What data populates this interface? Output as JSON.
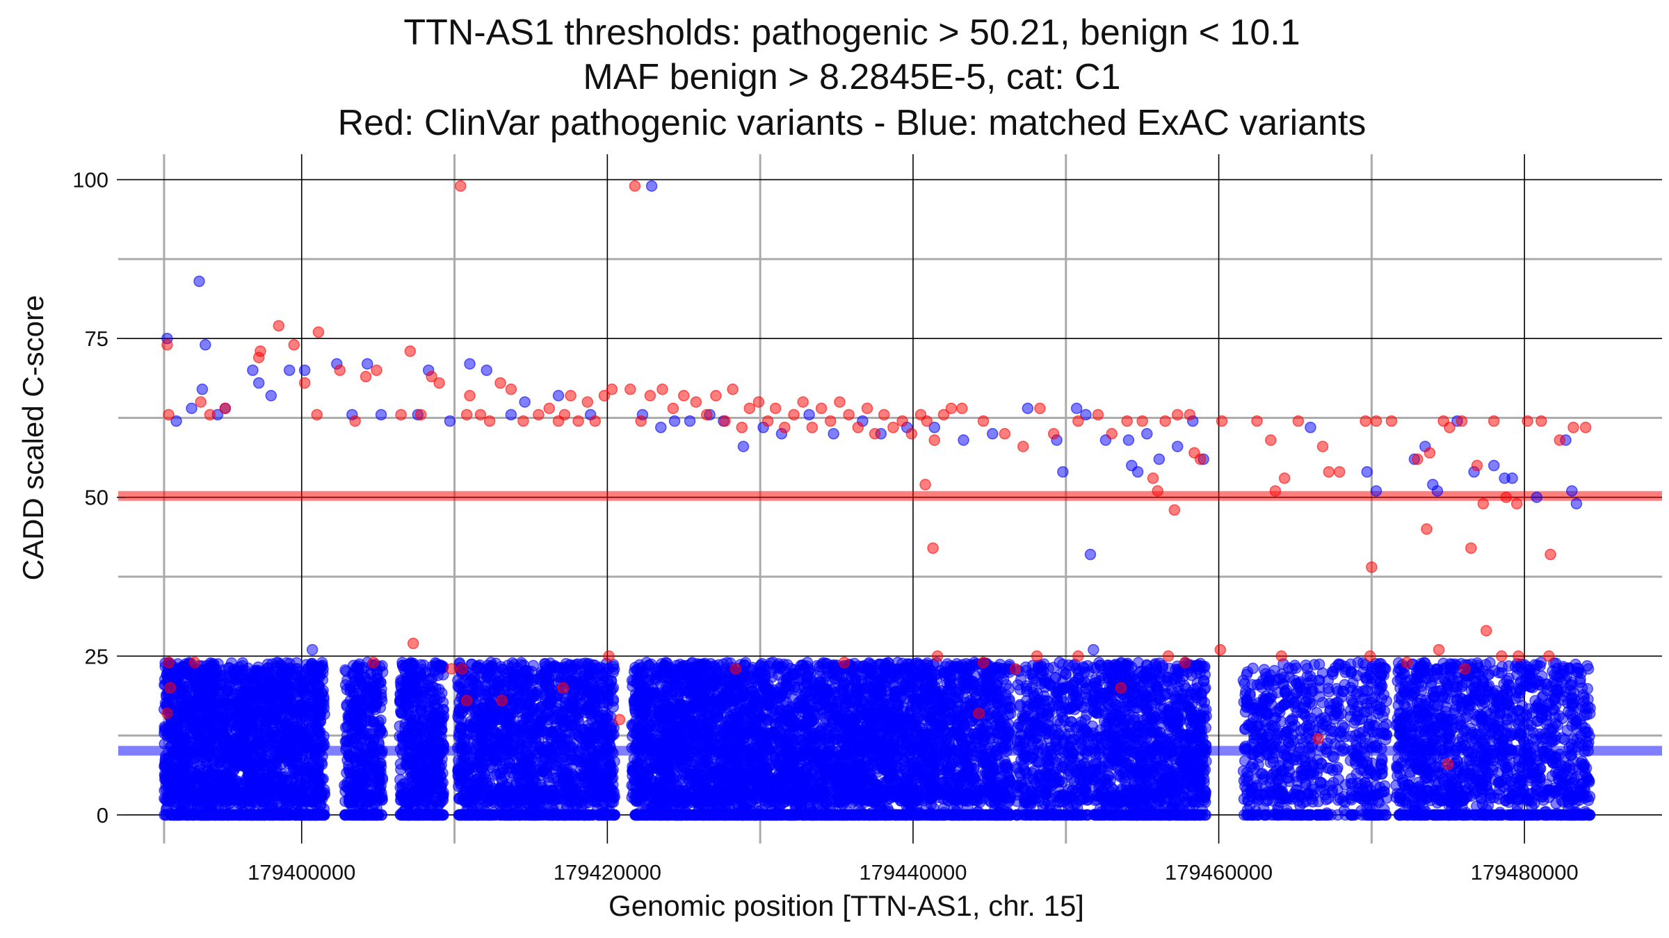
{
  "chart_data": {
    "type": "scatter",
    "title_lines": [
      "TTN-AS1 thresholds: pathogenic > 50.21, benign < 10.1",
      "MAF benign > 8.2845E-5, cat: C1",
      "Red: ClinVar pathogenic variants - Blue: matched ExAC variants"
    ],
    "xlabel": "Genomic position [TTN-AS1, chr. 15]",
    "ylabel": "CADD scaled C-score",
    "xlim": [
      179388000,
      179489000
    ],
    "ylim": [
      -4.5,
      104
    ],
    "x_ticks": [
      179400000,
      179420000,
      179440000,
      179460000,
      179480000
    ],
    "x_tick_labels": [
      "179400000",
      "179420000",
      "179440000",
      "179460000",
      "179480000"
    ],
    "y_ticks": [
      0,
      25,
      50,
      75,
      100
    ],
    "y_tick_labels": [
      "0",
      "25",
      "50",
      "75",
      "100"
    ],
    "major_vgrid_color": "#000000",
    "minor_vgrid_color": "#aaaaaa",
    "extra_hlines": [
      {
        "y": 62.5,
        "color": "#aaaaaa"
      },
      {
        "y": 87.5,
        "color": "#aaaaaa"
      },
      {
        "y": 37.5,
        "color": "#aaaaaa"
      },
      {
        "y": 12.5,
        "color": "#aaaaaa"
      }
    ],
    "minor_vgrid": [
      179391000,
      179410000,
      179430000,
      179450000,
      179470000
    ],
    "thresholds": [
      {
        "name": "pathogenic",
        "y": 50.21,
        "color": "#ff0000"
      },
      {
        "name": "benign",
        "y": 10.1,
        "color": "#0000ff"
      }
    ],
    "series": [
      {
        "name": "ClinVar pathogenic",
        "color": "#ff0000",
        "points": [
          [
            179410400,
            99
          ],
          [
            179421800,
            99
          ],
          [
            179391200,
            74
          ],
          [
            179391300,
            63
          ],
          [
            179393400,
            65
          ],
          [
            179394000,
            63
          ],
          [
            179395000,
            64
          ],
          [
            179397200,
            72
          ],
          [
            179397300,
            73
          ],
          [
            179398500,
            77
          ],
          [
            179399500,
            74
          ],
          [
            179400200,
            68
          ],
          [
            179401100,
            76
          ],
          [
            179401000,
            63
          ],
          [
            179402500,
            70
          ],
          [
            179403500,
            62
          ],
          [
            179404200,
            69
          ],
          [
            179404900,
            70
          ],
          [
            179406500,
            63
          ],
          [
            179407100,
            73
          ],
          [
            179407800,
            63
          ],
          [
            179408500,
            69
          ],
          [
            179409000,
            68
          ],
          [
            179410800,
            63
          ],
          [
            179411000,
            66
          ],
          [
            179411700,
            63
          ],
          [
            179412300,
            62
          ],
          [
            179413000,
            68
          ],
          [
            179413700,
            67
          ],
          [
            179414500,
            62
          ],
          [
            179415500,
            63
          ],
          [
            179416200,
            64
          ],
          [
            179416800,
            62
          ],
          [
            179417200,
            63
          ],
          [
            179417600,
            66
          ],
          [
            179418100,
            62
          ],
          [
            179418700,
            65
          ],
          [
            179419200,
            62
          ],
          [
            179419800,
            66
          ],
          [
            179420300,
            67
          ],
          [
            179421500,
            67
          ],
          [
            179422200,
            62
          ],
          [
            179422800,
            66
          ],
          [
            179423600,
            67
          ],
          [
            179424300,
            64
          ],
          [
            179425000,
            66
          ],
          [
            179425800,
            65
          ],
          [
            179426500,
            63
          ],
          [
            179427100,
            66
          ],
          [
            179427700,
            62
          ],
          [
            179428200,
            67
          ],
          [
            179428800,
            61
          ],
          [
            179429300,
            64
          ],
          [
            179429900,
            65
          ],
          [
            179430500,
            62
          ],
          [
            179431000,
            64
          ],
          [
            179431600,
            61
          ],
          [
            179432200,
            63
          ],
          [
            179432800,
            65
          ],
          [
            179433400,
            61
          ],
          [
            179434000,
            64
          ],
          [
            179434600,
            62
          ],
          [
            179435200,
            65
          ],
          [
            179435800,
            63
          ],
          [
            179436400,
            61
          ],
          [
            179437000,
            64
          ],
          [
            179437500,
            60
          ],
          [
            179438100,
            63
          ],
          [
            179438700,
            61
          ],
          [
            179439300,
            62
          ],
          [
            179439900,
            60
          ],
          [
            179440500,
            63
          ],
          [
            179440900,
            62
          ],
          [
            179441400,
            59
          ],
          [
            179442000,
            63
          ],
          [
            179442500,
            64
          ],
          [
            179440800,
            52
          ],
          [
            179441300,
            42
          ],
          [
            179443200,
            64
          ],
          [
            179444600,
            62
          ],
          [
            179446000,
            60
          ],
          [
            179447200,
            58
          ],
          [
            179448300,
            64
          ],
          [
            179449200,
            60
          ],
          [
            179450800,
            62
          ],
          [
            179452100,
            63
          ],
          [
            179453000,
            60
          ],
          [
            179454000,
            62
          ],
          [
            179455000,
            62
          ],
          [
            179455700,
            53
          ],
          [
            179456000,
            51
          ],
          [
            179456500,
            62
          ],
          [
            179457100,
            48
          ],
          [
            179457300,
            63
          ],
          [
            179458100,
            63
          ],
          [
            179458400,
            57
          ],
          [
            179458800,
            56
          ],
          [
            179460200,
            62
          ],
          [
            179462500,
            62
          ],
          [
            179463400,
            59
          ],
          [
            179463700,
            51
          ],
          [
            179464300,
            53
          ],
          [
            179465200,
            62
          ],
          [
            179466800,
            58
          ],
          [
            179467200,
            54
          ],
          [
            179467900,
            54
          ],
          [
            179469600,
            62
          ],
          [
            179470300,
            62
          ],
          [
            179470000,
            39
          ],
          [
            179471300,
            62
          ],
          [
            179473000,
            56
          ],
          [
            179473800,
            57
          ],
          [
            179473600,
            45
          ],
          [
            179474700,
            62
          ],
          [
            179475100,
            61
          ],
          [
            179475900,
            62
          ],
          [
            179476900,
            55
          ],
          [
            179476500,
            42
          ],
          [
            179477300,
            49
          ],
          [
            179478000,
            62
          ],
          [
            179478800,
            50
          ],
          [
            179479500,
            49
          ],
          [
            179480200,
            62
          ],
          [
            179481100,
            62
          ],
          [
            179481700,
            41
          ],
          [
            179482300,
            59
          ],
          [
            179483200,
            61
          ],
          [
            179484000,
            61
          ],
          [
            179391300,
            24
          ],
          [
            179391400,
            20
          ],
          [
            179391200,
            16
          ],
          [
            179393000,
            24
          ],
          [
            179404700,
            24
          ],
          [
            179407300,
            27
          ],
          [
            179409800,
            23
          ],
          [
            179410500,
            23
          ],
          [
            179410800,
            18
          ],
          [
            179413100,
            18
          ],
          [
            179417100,
            20
          ],
          [
            179420100,
            25
          ],
          [
            179420800,
            15
          ],
          [
            179428400,
            23
          ],
          [
            179435500,
            24
          ],
          [
            179441600,
            25
          ],
          [
            179444300,
            16
          ],
          [
            179444600,
            24
          ],
          [
            179446700,
            23
          ],
          [
            179448100,
            25
          ],
          [
            179450800,
            25
          ],
          [
            179453600,
            20
          ],
          [
            179456700,
            25
          ],
          [
            179457800,
            24
          ],
          [
            179460100,
            26
          ],
          [
            179464100,
            25
          ],
          [
            179466500,
            12
          ],
          [
            179469900,
            25
          ],
          [
            179472300,
            24
          ],
          [
            179474400,
            26
          ],
          [
            179475000,
            8
          ],
          [
            179476100,
            23
          ],
          [
            179477500,
            29
          ],
          [
            179478500,
            25
          ],
          [
            179479600,
            25
          ],
          [
            179481600,
            25
          ]
        ]
      },
      {
        "name": "matched ExAC",
        "color": "#0000ff",
        "points": [
          [
            179422900,
            99
          ],
          [
            179393300,
            84
          ],
          [
            179391200,
            75
          ],
          [
            179393700,
            74
          ],
          [
            179391800,
            62
          ],
          [
            179392800,
            64
          ],
          [
            179393500,
            67
          ],
          [
            179394500,
            63
          ],
          [
            179395000,
            64
          ],
          [
            179396800,
            70
          ],
          [
            179397200,
            68
          ],
          [
            179398000,
            66
          ],
          [
            179399200,
            70
          ],
          [
            179400200,
            70
          ],
          [
            179402300,
            71
          ],
          [
            179403300,
            63
          ],
          [
            179404300,
            71
          ],
          [
            179405200,
            63
          ],
          [
            179407600,
            63
          ],
          [
            179408300,
            70
          ],
          [
            179409700,
            62
          ],
          [
            179411000,
            71
          ],
          [
            179412100,
            70
          ],
          [
            179413700,
            63
          ],
          [
            179414600,
            65
          ],
          [
            179416800,
            66
          ],
          [
            179418900,
            63
          ],
          [
            179422300,
            63
          ],
          [
            179423500,
            61
          ],
          [
            179424400,
            62
          ],
          [
            179425400,
            62
          ],
          [
            179426700,
            63
          ],
          [
            179427600,
            62
          ],
          [
            179428900,
            58
          ],
          [
            179430200,
            61
          ],
          [
            179431400,
            60
          ],
          [
            179433200,
            63
          ],
          [
            179434800,
            60
          ],
          [
            179436700,
            62
          ],
          [
            179437900,
            60
          ],
          [
            179439600,
            61
          ],
          [
            179441400,
            61
          ],
          [
            179443300,
            59
          ],
          [
            179445200,
            60
          ],
          [
            179447500,
            64
          ],
          [
            179449400,
            59
          ],
          [
            179449800,
            54
          ],
          [
            179450700,
            64
          ],
          [
            179451300,
            63
          ],
          [
            179451600,
            41
          ],
          [
            179452600,
            59
          ],
          [
            179454100,
            59
          ],
          [
            179454300,
            55
          ],
          [
            179454700,
            54
          ],
          [
            179455300,
            60
          ],
          [
            179456100,
            56
          ],
          [
            179457300,
            58
          ],
          [
            179458300,
            62
          ],
          [
            179459000,
            56
          ],
          [
            179466000,
            61
          ],
          [
            179469700,
            54
          ],
          [
            179470300,
            51
          ],
          [
            179472800,
            56
          ],
          [
            179473500,
            58
          ],
          [
            179474000,
            52
          ],
          [
            179474300,
            51
          ],
          [
            179475600,
            62
          ],
          [
            179476700,
            54
          ],
          [
            179478000,
            55
          ],
          [
            179478700,
            53
          ],
          [
            179479200,
            53
          ],
          [
            179480800,
            50
          ],
          [
            179482700,
            59
          ],
          [
            179483100,
            51
          ],
          [
            179483400,
            49
          ],
          [
            179400700,
            26
          ],
          [
            179451800,
            26
          ]
        ]
      }
    ],
    "blue_band_segments": [
      [
        179391000,
        179401500,
        2200
      ],
      [
        179402800,
        179405300,
        420
      ],
      [
        179406400,
        179409300,
        560
      ],
      [
        179410200,
        179420500,
        1700
      ],
      [
        179421600,
        179437000,
        2900
      ],
      [
        179437000,
        179446400,
        1600
      ],
      [
        179446700,
        179451500,
        520
      ],
      [
        179451700,
        179459200,
        1150
      ],
      [
        179461600,
        179466300,
        420
      ],
      [
        179466400,
        179468300,
        120
      ],
      [
        179468600,
        179471000,
        220
      ],
      [
        179471600,
        179484300,
        1400
      ]
    ]
  }
}
